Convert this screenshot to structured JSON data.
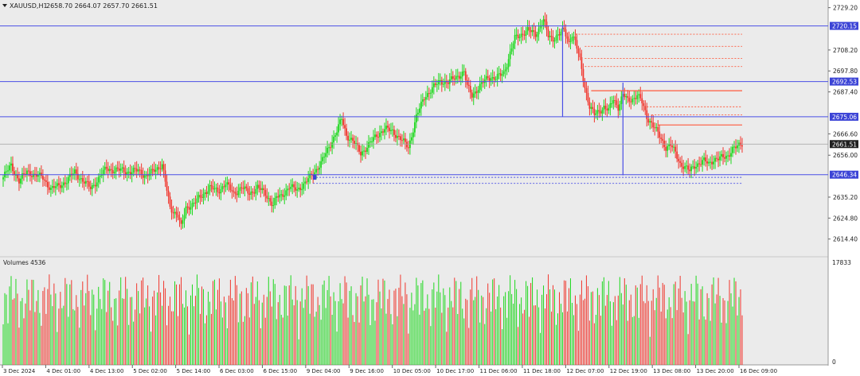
{
  "header": {
    "symbol": "XAUUSD,H1",
    "ohlc": "2658.70 2664.07 2657.70 2661.51"
  },
  "colors": {
    "bull": "#1ed81e",
    "bear": "#f0362d",
    "bg": "#ebebeb",
    "hline": "#4a4fe6",
    "label_bg": "#3c44d6",
    "price_bg": "#202020",
    "dash_red": "#ff5a3c"
  },
  "volume_panel": {
    "title": "Volumes 4536",
    "max_label": "17833",
    "zero_label": "0"
  },
  "chart_data": {
    "type": "candlestick",
    "ylim": [
      2606.0,
      2733.0
    ],
    "y_ticks": [
      "2729.20",
      "2708.20",
      "2697.80",
      "2687.40",
      "2666.60",
      "2656.00",
      "2635.20",
      "2624.80",
      "2614.40"
    ],
    "x_labels": [
      "3 Dec 2024",
      "4 Dec 01:00",
      "4 Dec 13:00",
      "5 Dec 02:00",
      "5 Dec 14:00",
      "6 Dec 03:00",
      "6 Dec 15:00",
      "9 Dec 04:00",
      "9 Dec 16:00",
      "10 Dec 05:00",
      "10 Dec 17:00",
      "11 Dec 06:00",
      "11 Dec 18:00",
      "12 Dec 07:00",
      "12 Dec 19:00",
      "13 Dec 08:00",
      "13 Dec 20:00",
      "16 Dec 09:00"
    ],
    "current_price": "2661.51",
    "levels": [
      {
        "label": "2720.15",
        "value": 2720.15
      },
      {
        "label": "2692.53",
        "value": 2692.53
      },
      {
        "label": "2675.06",
        "value": 2675.06
      },
      {
        "label": "2646.34",
        "value": 2646.34
      }
    ],
    "close_path": [
      [
        0,
        2645
      ],
      [
        5,
        2651
      ],
      [
        10,
        2643
      ],
      [
        15,
        2648
      ],
      [
        20,
        2646
      ],
      [
        25,
        2645
      ],
      [
        30,
        2639
      ],
      [
        35,
        2641
      ],
      [
        40,
        2643
      ],
      [
        45,
        2648
      ],
      [
        50,
        2643
      ],
      [
        55,
        2640
      ],
      [
        60,
        2644
      ],
      [
        65,
        2650
      ],
      [
        70,
        2648
      ],
      [
        75,
        2649
      ],
      [
        80,
        2647
      ],
      [
        85,
        2649
      ],
      [
        90,
        2645
      ],
      [
        95,
        2649
      ],
      [
        100,
        2651
      ],
      [
        105,
        2630
      ],
      [
        110,
        2626
      ],
      [
        112,
        2620
      ],
      [
        115,
        2630
      ],
      [
        120,
        2632
      ],
      [
        125,
        2636
      ],
      [
        130,
        2640
      ],
      [
        135,
        2638
      ],
      [
        140,
        2642
      ],
      [
        145,
        2637
      ],
      [
        150,
        2640
      ],
      [
        155,
        2637
      ],
      [
        160,
        2640
      ],
      [
        165,
        2637
      ],
      [
        170,
        2631
      ],
      [
        172,
        2635
      ],
      [
        175,
        2636
      ],
      [
        180,
        2640
      ],
      [
        185,
        2639
      ],
      [
        190,
        2642
      ],
      [
        195,
        2647
      ],
      [
        200,
        2652
      ],
      [
        205,
        2660
      ],
      [
        210,
        2668
      ],
      [
        213,
        2674
      ],
      [
        216,
        2666
      ],
      [
        220,
        2663
      ],
      [
        225,
        2657
      ],
      [
        230,
        2661
      ],
      [
        235,
        2666
      ],
      [
        240,
        2669
      ],
      [
        245,
        2668
      ],
      [
        250,
        2664
      ],
      [
        255,
        2660
      ],
      [
        260,
        2675
      ],
      [
        265,
        2685
      ],
      [
        270,
        2689
      ],
      [
        275,
        2693
      ],
      [
        280,
        2692
      ],
      [
        285,
        2695
      ],
      [
        290,
        2697
      ],
      [
        292,
        2690
      ],
      [
        295,
        2686
      ],
      [
        300,
        2690
      ],
      [
        305,
        2695
      ],
      [
        310,
        2694
      ],
      [
        315,
        2697
      ],
      [
        318,
        2704
      ],
      [
        322,
        2714
      ],
      [
        326,
        2716
      ],
      [
        330,
        2718
      ],
      [
        335,
        2716
      ],
      [
        340,
        2723
      ],
      [
        343,
        2715
      ],
      [
        346,
        2714
      ],
      [
        350,
        2716
      ],
      [
        353,
        2718
      ],
      [
        356,
        2712
      ],
      [
        358,
        2716
      ],
      [
        360,
        2712
      ],
      [
        363,
        2703
      ],
      [
        366,
        2690
      ],
      [
        369,
        2680
      ],
      [
        372,
        2676
      ],
      [
        375,
        2678
      ],
      [
        378,
        2680
      ],
      [
        381,
        2678
      ],
      [
        384,
        2684
      ],
      [
        387,
        2680
      ],
      [
        390,
        2686
      ],
      [
        393,
        2683
      ],
      [
        396,
        2684
      ],
      [
        399,
        2686
      ],
      [
        402,
        2682
      ],
      [
        405,
        2675
      ],
      [
        408,
        2672
      ],
      [
        411,
        2668
      ],
      [
        414,
        2664
      ],
      [
        417,
        2660
      ],
      [
        420,
        2661
      ],
      [
        423,
        2657
      ],
      [
        426,
        2652
      ],
      [
        429,
        2650
      ],
      [
        432,
        2648
      ],
      [
        435,
        2651
      ],
      [
        438,
        2652
      ],
      [
        441,
        2653
      ],
      [
        444,
        2652
      ],
      [
        447,
        2654
      ],
      [
        450,
        2654
      ],
      [
        453,
        2655
      ],
      [
        456,
        2656
      ],
      [
        459,
        2659
      ],
      [
        462,
        2660
      ],
      [
        465,
        2662
      ]
    ],
    "levels_meta": {
      "hline_x_end": 465
    }
  }
}
